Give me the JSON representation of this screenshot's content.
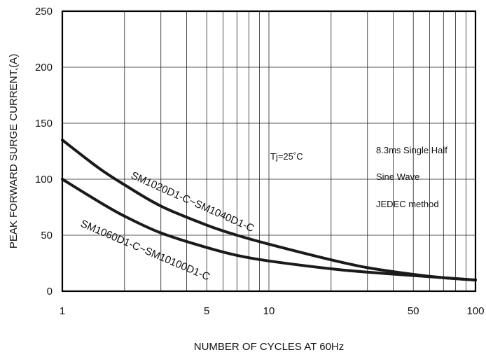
{
  "chart_data": {
    "type": "line",
    "xlabel": "NUMBER OF CYCLES AT 60Hz",
    "ylabel": "PEAK FORWARD SURGE CURRENT,(A)",
    "x_scale": "log",
    "xlim": [
      1,
      100
    ],
    "ylim": [
      0,
      250
    ],
    "x_ticks": [
      {
        "value": 1,
        "label": "1"
      },
      {
        "value": 5,
        "label": "5"
      },
      {
        "value": 10,
        "label": "10"
      },
      {
        "value": 50,
        "label": "50"
      },
      {
        "value": 100,
        "label": "100"
      }
    ],
    "y_ticks": [
      {
        "value": 0,
        "label": "0"
      },
      {
        "value": 50,
        "label": "50"
      },
      {
        "value": 100,
        "label": "100"
      },
      {
        "value": 150,
        "label": "150"
      },
      {
        "value": 200,
        "label": "200"
      },
      {
        "value": 250,
        "label": "250"
      }
    ],
    "grid": true,
    "series": [
      {
        "name": "SM1020D1-C~SM1040D1-C",
        "x": [
          1,
          1.5,
          2,
          3,
          5,
          7,
          10,
          20,
          30,
          50,
          70,
          100
        ],
        "y": [
          135,
          110,
          95,
          76,
          59,
          50,
          42,
          28,
          21,
          15,
          12,
          10
        ]
      },
      {
        "name": "SM1060D1-C~SM10100D1-C",
        "x": [
          1,
          1.5,
          2,
          3,
          5,
          7,
          10,
          20,
          30,
          50,
          70,
          100
        ],
        "y": [
          100,
          80,
          67,
          52,
          39,
          32,
          27,
          20,
          17,
          14,
          12,
          10
        ]
      }
    ],
    "annotations": {
      "tj": "Tj=25˚C",
      "note1": "8.3ms Single Half",
      "note2": "Sine Wave",
      "note3": "JEDEC method"
    }
  }
}
